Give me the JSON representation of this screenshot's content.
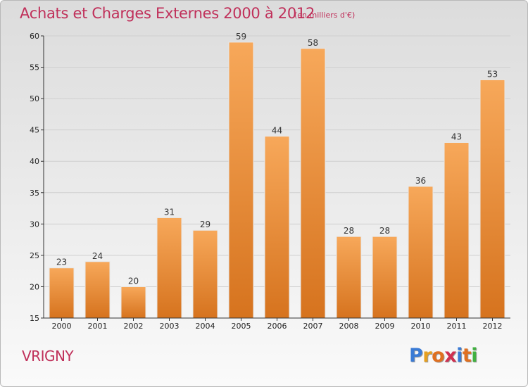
{
  "title": "Achats et Charges Externes 2000 à 2012",
  "subtitle": "(en milliers d'€)",
  "commune": "VRIGNY",
  "logo": {
    "letters": [
      "P",
      "r",
      "o",
      "x",
      "i",
      "t",
      "i"
    ],
    "colors": [
      "#3a7bd5",
      "#e6a020",
      "#e07020",
      "#d03050",
      "#3a7bd5",
      "#e07020",
      "#40b040"
    ]
  },
  "colors": {
    "title": "#c0305a",
    "bar_top": "#f7a85a",
    "bar_bottom": "#d6731e",
    "axis": "#333333",
    "grid": "#cfcfcf"
  },
  "chart_data": {
    "type": "bar",
    "title": "Achats et Charges Externes 2000 à 2012",
    "subtitle": "(en milliers d'€)",
    "categories": [
      "2000",
      "2001",
      "2002",
      "2003",
      "2004",
      "2005",
      "2006",
      "2007",
      "2008",
      "2009",
      "2010",
      "2011",
      "2012"
    ],
    "values": [
      23,
      24,
      20,
      31,
      29,
      59,
      44,
      58,
      28,
      28,
      36,
      43,
      53
    ],
    "ylim": [
      15,
      60
    ],
    "yticks": [
      15,
      20,
      25,
      30,
      35,
      40,
      45,
      50,
      55,
      60
    ],
    "grid": true,
    "xlabel": "",
    "ylabel": ""
  }
}
